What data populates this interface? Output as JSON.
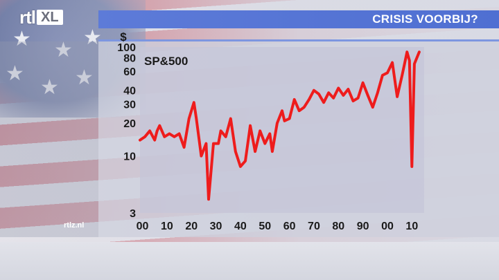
{
  "header": {
    "logo_rtl": "rtl",
    "logo_xl": "XL",
    "title": "CRISIS VOORBIJ?"
  },
  "footer": {
    "site": "rtlz.nl"
  },
  "colors": {
    "line": "#ee1c1c",
    "plot_bg": "#c6c6d8",
    "title_bar": "#5570d4"
  },
  "chart_data": {
    "type": "line",
    "series_label": "SP&500",
    "y_unit": "$",
    "y_scale": "log",
    "ylim": [
      3,
      100
    ],
    "y_ticks": [
      3,
      10,
      20,
      30,
      40,
      60,
      80,
      100
    ],
    "xlim": [
      1899,
      2015
    ],
    "x_ticks": [
      1900,
      1910,
      1920,
      1930,
      1940,
      1950,
      1960,
      1970,
      1980,
      1990,
      2000,
      2010
    ],
    "x_tick_labels": [
      "00",
      "10",
      "20",
      "30",
      "40",
      "50",
      "60",
      "70",
      "80",
      "90",
      "00",
      "10"
    ],
    "x": [
      1899,
      1901,
      1903,
      1905,
      1906,
      1907,
      1909,
      1911,
      1913,
      1915,
      1917,
      1919,
      1921,
      1922,
      1924,
      1926,
      1927,
      1929,
      1931,
      1932,
      1934,
      1936,
      1938,
      1940,
      1942,
      1943,
      1944,
      1946,
      1948,
      1950,
      1952,
      1953,
      1955,
      1957,
      1958,
      1960,
      1962,
      1964,
      1966,
      1968,
      1970,
      1972,
      1974,
      1976,
      1978,
      1980,
      1982,
      1984,
      1986,
      1988,
      1990,
      1992,
      1994,
      1996,
      1998,
      2000,
      2002,
      2004,
      2006,
      2007,
      2008,
      2009,
      2010,
      2011,
      2013
    ],
    "y": [
      14,
      15,
      17,
      14,
      17,
      19,
      15,
      16,
      15,
      16,
      12,
      22,
      31,
      22,
      10,
      13,
      4,
      13,
      13,
      17,
      15,
      22,
      11,
      8,
      9,
      13,
      19,
      11,
      17,
      13,
      16,
      11,
      20,
      26,
      21,
      22,
      33,
      26,
      28,
      33,
      40,
      37,
      31,
      38,
      34,
      42,
      36,
      41,
      32,
      34,
      47,
      36,
      28,
      38,
      55,
      58,
      72,
      35,
      55,
      70,
      90,
      75,
      8,
      70,
      90
    ]
  }
}
